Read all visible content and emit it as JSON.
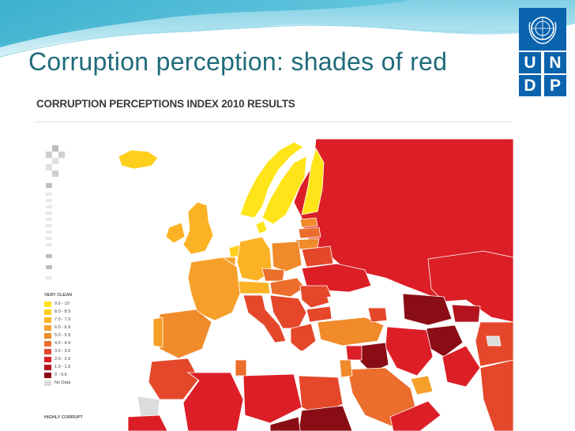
{
  "slide": {
    "title": "Corruption perception: shades of red"
  },
  "logo": {
    "name": "UNDP",
    "letters": [
      "U",
      "N",
      "D",
      "P"
    ],
    "emblem": "un-emblem-icon",
    "color": "#0a63ad"
  },
  "map": {
    "title": "CORRUPTION PERCEPTIONS INDEX 2010 RESULTS",
    "legend_top": "VERY CLEAN",
    "legend_bottom": "HIGHLY CORRUPT",
    "legend": [
      {
        "label": "9.0 - 10",
        "color": "#ffe419"
      },
      {
        "label": "8.0 - 8.9",
        "color": "#ffcf1c"
      },
      {
        "label": "7.0 - 7.9",
        "color": "#fbb325"
      },
      {
        "label": "6.0 - 6.9",
        "color": "#f6a02a"
      },
      {
        "label": "5.0 - 5.9",
        "color": "#f08a2a"
      },
      {
        "label": "4.0 - 4.9",
        "color": "#ec6e2c"
      },
      {
        "label": "3.0 - 3.9",
        "color": "#e5472b"
      },
      {
        "label": "2.0 - 2.9",
        "color": "#dc1f26"
      },
      {
        "label": "1.0 - 1.9",
        "color": "#b3131c"
      },
      {
        "label": "0 - 0.9",
        "color": "#8a0d16"
      },
      {
        "label": "No Data",
        "color": "#dcdcdc"
      }
    ]
  }
}
